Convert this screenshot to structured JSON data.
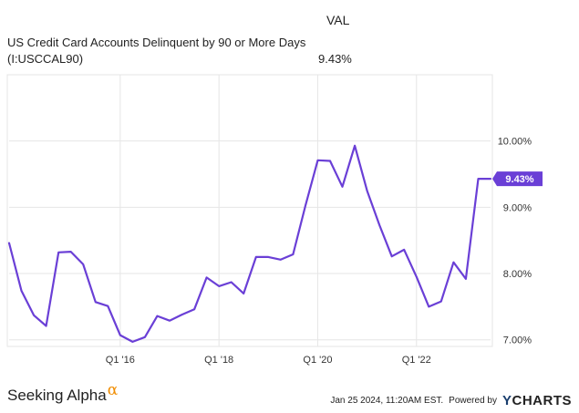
{
  "header": {
    "column_label": "VAL",
    "series_name": "US Credit Card Accounts Delinquent by 90 or More Days",
    "series_code": "(I:USCCAL90)",
    "series_value": "9.43%"
  },
  "chart_data": {
    "type": "line",
    "title": "US Credit Card Accounts Delinquent by 90 or More Days",
    "xlabel": "",
    "ylabel": "",
    "x_tick_labels": [
      "Q1 '16",
      "Q1 '18",
      "Q1 '20",
      "Q1 '22"
    ],
    "x_tick_values": [
      2016.0,
      2018.0,
      2020.0,
      2022.0
    ],
    "xlim": [
      2013.75,
      2023.5
    ],
    "y_tick_labels": [
      "7.00%",
      "8.00%",
      "9.00%",
      "10.00%"
    ],
    "y_tick_values": [
      7.0,
      8.0,
      9.0,
      10.0
    ],
    "ylim": [
      6.9,
      11.0
    ],
    "grid": true,
    "line_color": "#6a3fd6",
    "series": [
      {
        "name": "US Credit Card Accounts Delinquent by 90 or More Days",
        "x": [
          2013.75,
          2014.0,
          2014.25,
          2014.5,
          2014.75,
          2015.0,
          2015.25,
          2015.5,
          2015.75,
          2016.0,
          2016.25,
          2016.5,
          2016.75,
          2017.0,
          2017.25,
          2017.5,
          2017.75,
          2018.0,
          2018.25,
          2018.5,
          2018.75,
          2019.0,
          2019.25,
          2019.5,
          2019.75,
          2020.0,
          2020.25,
          2020.5,
          2020.75,
          2021.0,
          2021.25,
          2021.5,
          2021.75,
          2022.0,
          2022.25,
          2022.5,
          2022.75,
          2023.0,
          2023.25,
          2023.5
        ],
        "values": [
          8.46,
          7.74,
          7.37,
          7.21,
          8.32,
          8.33,
          8.14,
          7.57,
          7.51,
          7.07,
          6.97,
          7.04,
          7.36,
          7.29,
          7.38,
          7.46,
          7.94,
          7.81,
          7.87,
          7.7,
          8.25,
          8.25,
          8.21,
          8.29,
          9.02,
          9.71,
          9.7,
          9.31,
          9.93,
          9.25,
          8.73,
          8.26,
          8.36,
          7.95,
          7.5,
          7.58,
          8.17,
          7.92,
          9.43,
          9.43
        ]
      }
    ],
    "last_value_label": "9.43%"
  },
  "footer": {
    "brand_name": "Seeking Alpha",
    "brand_symbol": "α",
    "timestamp": "Jan 25 2024, 11:20AM EST.",
    "powered_by": "Powered by",
    "logo_initial": "Y",
    "logo_rest": "CHARTS"
  }
}
